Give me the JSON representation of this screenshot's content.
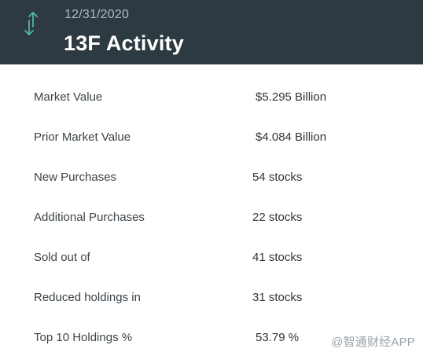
{
  "header": {
    "date": "12/31/2020",
    "title": "13F Activity",
    "icon": "up-down-arrow-icon",
    "icon_color": "#4fb7a3",
    "background": "#2e3a41"
  },
  "rows": [
    {
      "label": "Market Value",
      "value": "$5.295 Billion"
    },
    {
      "label": "Prior Market Value",
      "value": "$4.084 Billion"
    },
    {
      "label": "New Purchases",
      "value": "54 stocks"
    },
    {
      "label": "Additional Purchases",
      "value": "22 stocks"
    },
    {
      "label": "Sold out of",
      "value": "41 stocks"
    },
    {
      "label": "Reduced holdings in",
      "value": "31 stocks"
    },
    {
      "label": "Top 10 Holdings %",
      "value": "53.79 %"
    }
  ],
  "watermark": "@智通财经APP"
}
